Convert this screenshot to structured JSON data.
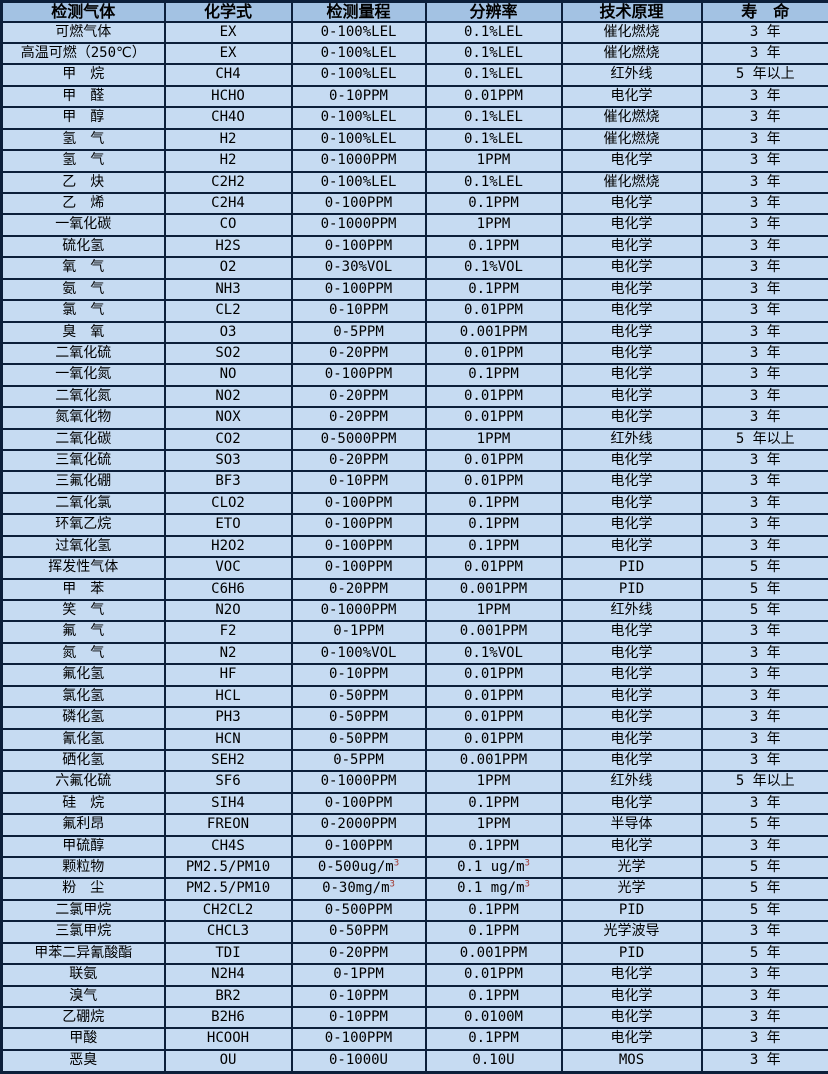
{
  "colors": {
    "header_bg": "#a3c2e3",
    "row_bg": "#c6dbf2",
    "border": "#0c1f3a",
    "text": "#000000",
    "superscript": "#a0342a"
  },
  "table": {
    "columns": [
      "检测气体",
      "化学式",
      "检测量程",
      "分辨率",
      "技术原理",
      "寿　命"
    ],
    "superscript_marker": "^",
    "rows": [
      [
        "可燃气体",
        "EX",
        "0-100%LEL",
        "0.1%LEL",
        "催化燃烧",
        "3 年"
      ],
      [
        "高温可燃（250℃）",
        "EX",
        "0-100%LEL",
        "0.1%LEL",
        "催化燃烧",
        "3 年"
      ],
      [
        "甲　烷",
        "CH4",
        "0-100%LEL",
        "0.1%LEL",
        "红外线",
        "5 年以上"
      ],
      [
        "甲　醛",
        "HCHO",
        "0-10PPM",
        "0.01PPM",
        "电化学",
        "3 年"
      ],
      [
        "甲　醇",
        "CH4O",
        "0-100%LEL",
        "0.1%LEL",
        "催化燃烧",
        "3 年"
      ],
      [
        "氢　气",
        "H2",
        "0-100%LEL",
        "0.1%LEL",
        "催化燃烧",
        "3 年"
      ],
      [
        "氢　气",
        "H2",
        "0-1000PPM",
        "1PPM",
        "电化学",
        "3 年"
      ],
      [
        "乙　炔",
        "C2H2",
        "0-100%LEL",
        "0.1%LEL",
        "催化燃烧",
        "3 年"
      ],
      [
        "乙　烯",
        "C2H4",
        "0-100PPM",
        "0.1PPM",
        "电化学",
        "3 年"
      ],
      [
        "一氧化碳",
        "CO",
        "0-1000PPM",
        "1PPM",
        "电化学",
        "3 年"
      ],
      [
        "硫化氢",
        "H2S",
        "0-100PPM",
        "0.1PPM",
        "电化学",
        "3 年"
      ],
      [
        "氧　气",
        "O2",
        "0-30%VOL",
        "0.1%VOL",
        "电化学",
        "3 年"
      ],
      [
        "氨　气",
        "NH3",
        "0-100PPM",
        "0.1PPM",
        "电化学",
        "3 年"
      ],
      [
        "氯　气",
        "CL2",
        "0-10PPM",
        "0.01PPM",
        "电化学",
        "3 年"
      ],
      [
        "臭　氧",
        "O3",
        "0-5PPM",
        "0.001PPM",
        "电化学",
        "3 年"
      ],
      [
        "二氧化硫",
        "SO2",
        "0-20PPM",
        "0.01PPM",
        "电化学",
        "3 年"
      ],
      [
        "一氧化氮",
        "NO",
        "0-100PPM",
        "0.1PPM",
        "电化学",
        "3 年"
      ],
      [
        "二氧化氮",
        "NO2",
        "0-20PPM",
        "0.01PPM",
        "电化学",
        "3 年"
      ],
      [
        "氮氧化物",
        "NOX",
        "0-20PPM",
        "0.01PPM",
        "电化学",
        "3 年"
      ],
      [
        "二氧化碳",
        "CO2",
        "0-5000PPM",
        "1PPM",
        "红外线",
        "5 年以上"
      ],
      [
        "三氧化硫",
        "SO3",
        "0-20PPM",
        "0.01PPM",
        "电化学",
        "3 年"
      ],
      [
        "三氟化硼",
        "BF3",
        "0-10PPM",
        "0.01PPM",
        "电化学",
        "3 年"
      ],
      [
        "二氧化氯",
        "CLO2",
        "0-100PPM",
        "0.1PPM",
        "电化学",
        "3 年"
      ],
      [
        "环氧乙烷",
        "ETO",
        "0-100PPM",
        "0.1PPM",
        "电化学",
        "3 年"
      ],
      [
        "过氧化氢",
        "H2O2",
        "0-100PPM",
        "0.1PPM",
        "电化学",
        "3 年"
      ],
      [
        "挥发性气体",
        "VOC",
        "0-100PPM",
        "0.01PPM",
        "PID",
        "5 年"
      ],
      [
        "甲　苯",
        "C6H6",
        "0-20PPM",
        "0.001PPM",
        "PID",
        "5 年"
      ],
      [
        "笑　气",
        "N2O",
        "0-1000PPM",
        "1PPM",
        "红外线",
        "5 年"
      ],
      [
        "氟　气",
        "F2",
        "0-1PPM",
        "0.001PPM",
        "电化学",
        "3 年"
      ],
      [
        "氮　气",
        "N2",
        "0-100%VOL",
        "0.1%VOL",
        "电化学",
        "3 年"
      ],
      [
        "氟化氢",
        "HF",
        "0-10PPM",
        "0.01PPM",
        "电化学",
        "3 年"
      ],
      [
        "氯化氢",
        "HCL",
        "0-50PPM",
        "0.01PPM",
        "电化学",
        "3 年"
      ],
      [
        "磷化氢",
        "PH3",
        "0-50PPM",
        "0.01PPM",
        "电化学",
        "3 年"
      ],
      [
        "氰化氢",
        "HCN",
        "0-50PPM",
        "0.01PPM",
        "电化学",
        "3 年"
      ],
      [
        "硒化氢",
        "SEH2",
        "0-5PPM",
        "0.001PPM",
        "电化学",
        "3 年"
      ],
      [
        "六氟化硫",
        "SF6",
        "0-1000PPM",
        "1PPM",
        "红外线",
        "5 年以上"
      ],
      [
        "硅　烷",
        "SIH4",
        "0-100PPM",
        "0.1PPM",
        "电化学",
        "3 年"
      ],
      [
        "氟利昂",
        "FREON",
        "0-2000PPM",
        "1PPM",
        "半导体",
        "5 年"
      ],
      [
        "甲硫醇",
        "CH4S",
        "0-100PPM",
        "0.1PPM",
        "电化学",
        "3 年"
      ],
      [
        "颗粒物",
        "PM2.5/PM10",
        "0-500ug/m^3",
        "0.1 ug/m^3",
        "光学",
        "5 年"
      ],
      [
        "粉　尘",
        "PM2.5/PM10",
        "0-30mg/m^3",
        "0.1 mg/m^3",
        "光学",
        "5 年"
      ],
      [
        "二氯甲烷",
        "CH2CL2",
        "0-500PPM",
        "0.1PPM",
        "PID",
        "5 年"
      ],
      [
        "三氯甲烷",
        "CHCL3",
        "0-50PPM",
        "0.1PPM",
        "光学波导",
        "3 年"
      ],
      [
        "甲苯二异氰酸酯",
        "TDI",
        "0-20PPM",
        "0.001PPM",
        "PID",
        "5 年"
      ],
      [
        "联氨",
        "N2H4",
        "0-1PPM",
        "0.01PPM",
        "电化学",
        "3 年"
      ],
      [
        "溴气",
        "BR2",
        "0-10PPM",
        "0.1PPM",
        "电化学",
        "3 年"
      ],
      [
        "乙硼烷",
        "B2H6",
        "0-10PPM",
        "0.0100M",
        "电化学",
        "3 年"
      ],
      [
        "甲酸",
        "HCOOH",
        "0-100PPM",
        "0.1PPM",
        "电化学",
        "3 年"
      ],
      [
        "恶臭",
        "OU",
        "0-1000U",
        "0.10U",
        "MOS",
        "3 年"
      ]
    ]
  }
}
